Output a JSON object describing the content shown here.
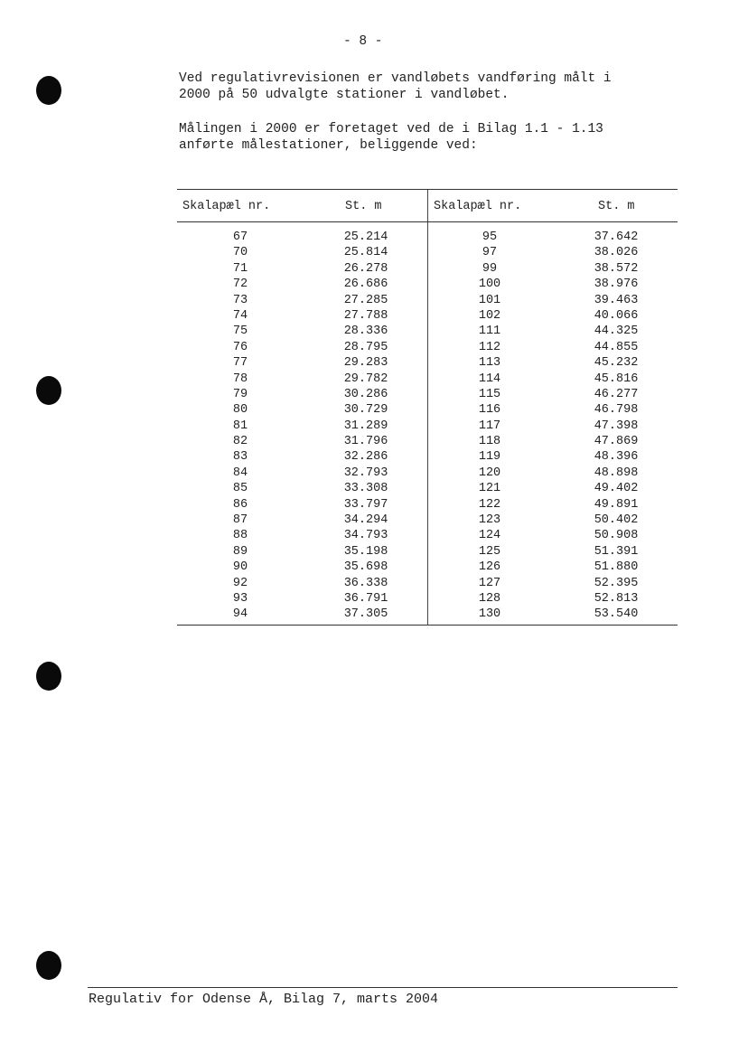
{
  "page_number": "- 8 -",
  "paragraphs": [
    "Ved regulativrevisionen er vandløbets vandføring målt i\n2000 på 50 udvalgte stationer i vandløbet.",
    "Målingen i 2000 er foretaget ved de i Bilag 1.1 - 1.13\nanførte målestationer, beliggende ved:"
  ],
  "table": {
    "headers": [
      "Skalapæl nr.",
      "St. m",
      "Skalapæl nr.",
      "St. m"
    ],
    "rows": [
      [
        "67",
        "25.214",
        "95",
        "37.642"
      ],
      [
        "70",
        "25.814",
        "97",
        "38.026"
      ],
      [
        "71",
        "26.278",
        "99",
        "38.572"
      ],
      [
        "72",
        "26.686",
        "100",
        "38.976"
      ],
      [
        "73",
        "27.285",
        "101",
        "39.463"
      ],
      [
        "74",
        "27.788",
        "102",
        "40.066"
      ],
      [
        "75",
        "28.336",
        "111",
        "44.325"
      ],
      [
        "76",
        "28.795",
        "112",
        "44.855"
      ],
      [
        "77",
        "29.283",
        "113",
        "45.232"
      ],
      [
        "78",
        "29.782",
        "114",
        "45.816"
      ],
      [
        "79",
        "30.286",
        "115",
        "46.277"
      ],
      [
        "80",
        "30.729",
        "116",
        "46.798"
      ],
      [
        "81",
        "31.289",
        "117",
        "47.398"
      ],
      [
        "82",
        "31.796",
        "118",
        "47.869"
      ],
      [
        "83",
        "32.286",
        "119",
        "48.396"
      ],
      [
        "84",
        "32.793",
        "120",
        "48.898"
      ],
      [
        "85",
        "33.308",
        "121",
        "49.402"
      ],
      [
        "86",
        "33.797",
        "122",
        "49.891"
      ],
      [
        "87",
        "34.294",
        "123",
        "50.402"
      ],
      [
        "88",
        "34.793",
        "124",
        "50.908"
      ],
      [
        "89",
        "35.198",
        "125",
        "51.391"
      ],
      [
        "90",
        "35.698",
        "126",
        "51.880"
      ],
      [
        "92",
        "36.338",
        "127",
        "52.395"
      ],
      [
        "93",
        "36.791",
        "128",
        "52.813"
      ],
      [
        "94",
        "37.305",
        "130",
        "53.540"
      ]
    ]
  },
  "footer": "Regulativ for Odense Å, Bilag 7, marts 2004"
}
